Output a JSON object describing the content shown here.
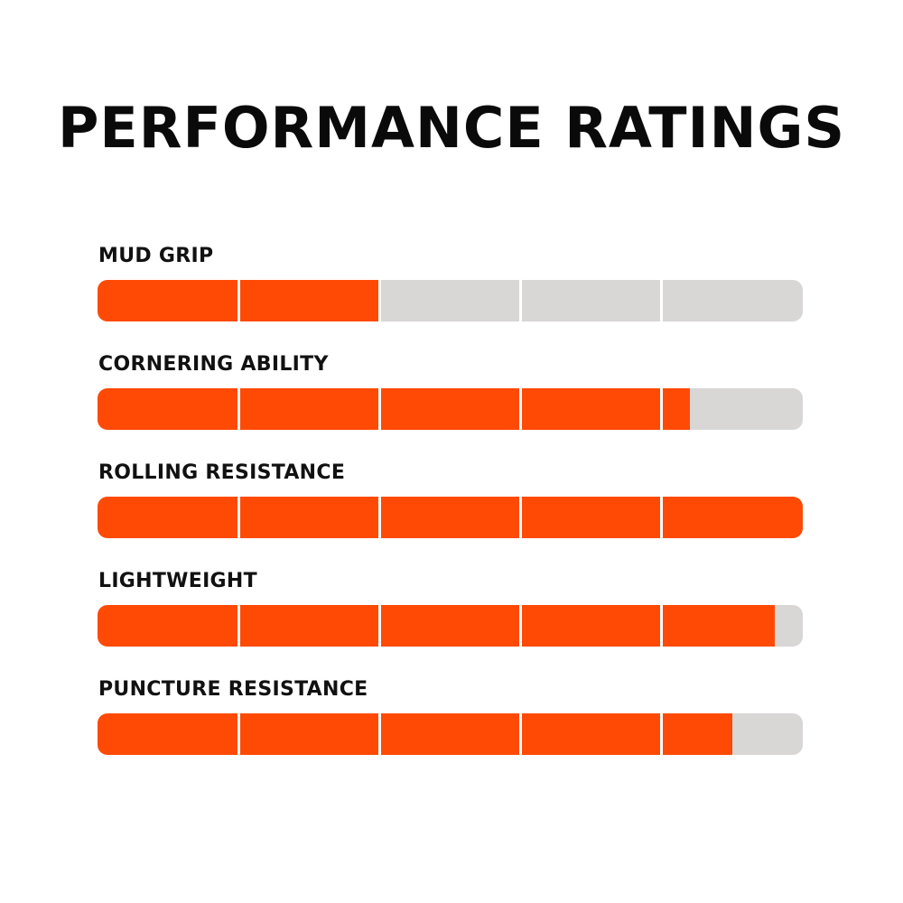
{
  "title": "PERFORMANCE RATINGS",
  "colors": {
    "fill": "#ff4a06",
    "track": "#d9d6d6",
    "divider": "#ffffff",
    "text": "#111111"
  },
  "chart_data": {
    "type": "bar",
    "orientation": "horizontal",
    "title": "PERFORMANCE RATINGS",
    "segments": 5,
    "max": 5,
    "categories": [
      "MUD GRIP",
      "CORNERING ABILITY",
      "ROLLING RESISTANCE",
      "LIGHTWEIGHT",
      "PUNCTURE RESISTANCE"
    ],
    "values": [
      2,
      4.2,
      5,
      4.8,
      4.5
    ],
    "xlim": [
      0,
      5
    ],
    "grid": false,
    "legend": "none"
  }
}
